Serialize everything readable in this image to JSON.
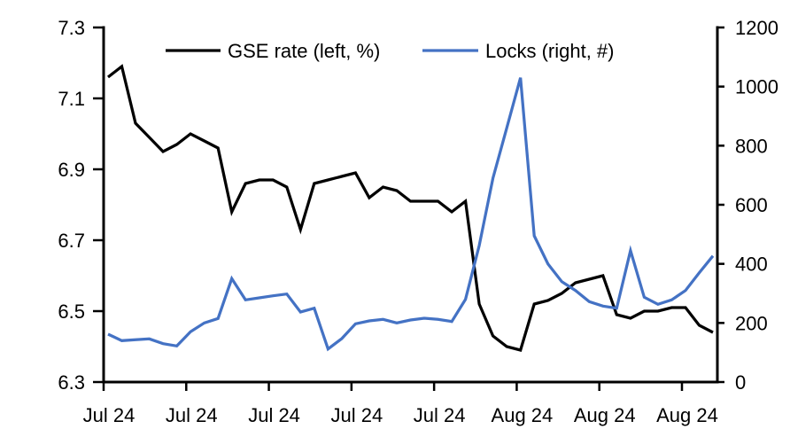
{
  "chart_data": {
    "type": "line",
    "title": "",
    "grid": false,
    "legend_position": "top-inside",
    "x_tick_labels": [
      "Jul 24",
      "Jul 24",
      "Jul 24",
      "Jul 24",
      "Jul 24",
      "Aug 24",
      "Aug 24",
      "Aug 24"
    ],
    "left_axis": {
      "min": 6.3,
      "max": 7.3,
      "ticks": [
        7.3,
        7.1,
        6.9,
        6.7,
        6.5,
        6.3
      ],
      "tick_labels": [
        "7.3",
        "7.1",
        "6.9",
        "6.7",
        "6.5",
        "6.3"
      ]
    },
    "right_axis": {
      "min": 0,
      "max": 1200,
      "ticks": [
        1200,
        1000,
        800,
        600,
        400,
        200,
        0
      ],
      "tick_labels": [
        "1200",
        "1000",
        "800",
        "600",
        "400",
        "200",
        "0"
      ]
    },
    "series": [
      {
        "name": "GSE rate (left, %)",
        "axis": "left",
        "color": "#000000",
        "values": [
          7.16,
          7.19,
          7.03,
          6.99,
          6.95,
          6.97,
          7.0,
          6.98,
          6.96,
          6.78,
          6.86,
          6.87,
          6.87,
          6.85,
          6.73,
          6.86,
          6.87,
          6.88,
          6.89,
          6.82,
          6.85,
          6.84,
          6.81,
          6.81,
          6.81,
          6.78,
          6.81,
          6.52,
          6.43,
          6.4,
          6.39,
          6.52,
          6.53,
          6.55,
          6.58,
          6.59,
          6.6,
          6.49,
          6.48,
          6.5,
          6.5,
          6.51,
          6.51,
          6.46,
          6.44
        ]
      },
      {
        "name": "Locks (right, #)",
        "axis": "right",
        "color": "#4472C4",
        "values": [
          162,
          140,
          143,
          146,
          130,
          122,
          170,
          200,
          215,
          350,
          278,
          285,
          292,
          298,
          237,
          250,
          112,
          147,
          197,
          207,
          212,
          200,
          210,
          216,
          212,
          205,
          280,
          462,
          690,
          860,
          1030,
          495,
          400,
          340,
          310,
          272,
          257,
          250,
          445,
          287,
          263,
          278,
          310,
          370,
          427
        ]
      }
    ]
  },
  "colors": {
    "background": "#ffffff",
    "axis": "#000000",
    "gse_rate": "#000000",
    "locks": "#4472C4"
  }
}
